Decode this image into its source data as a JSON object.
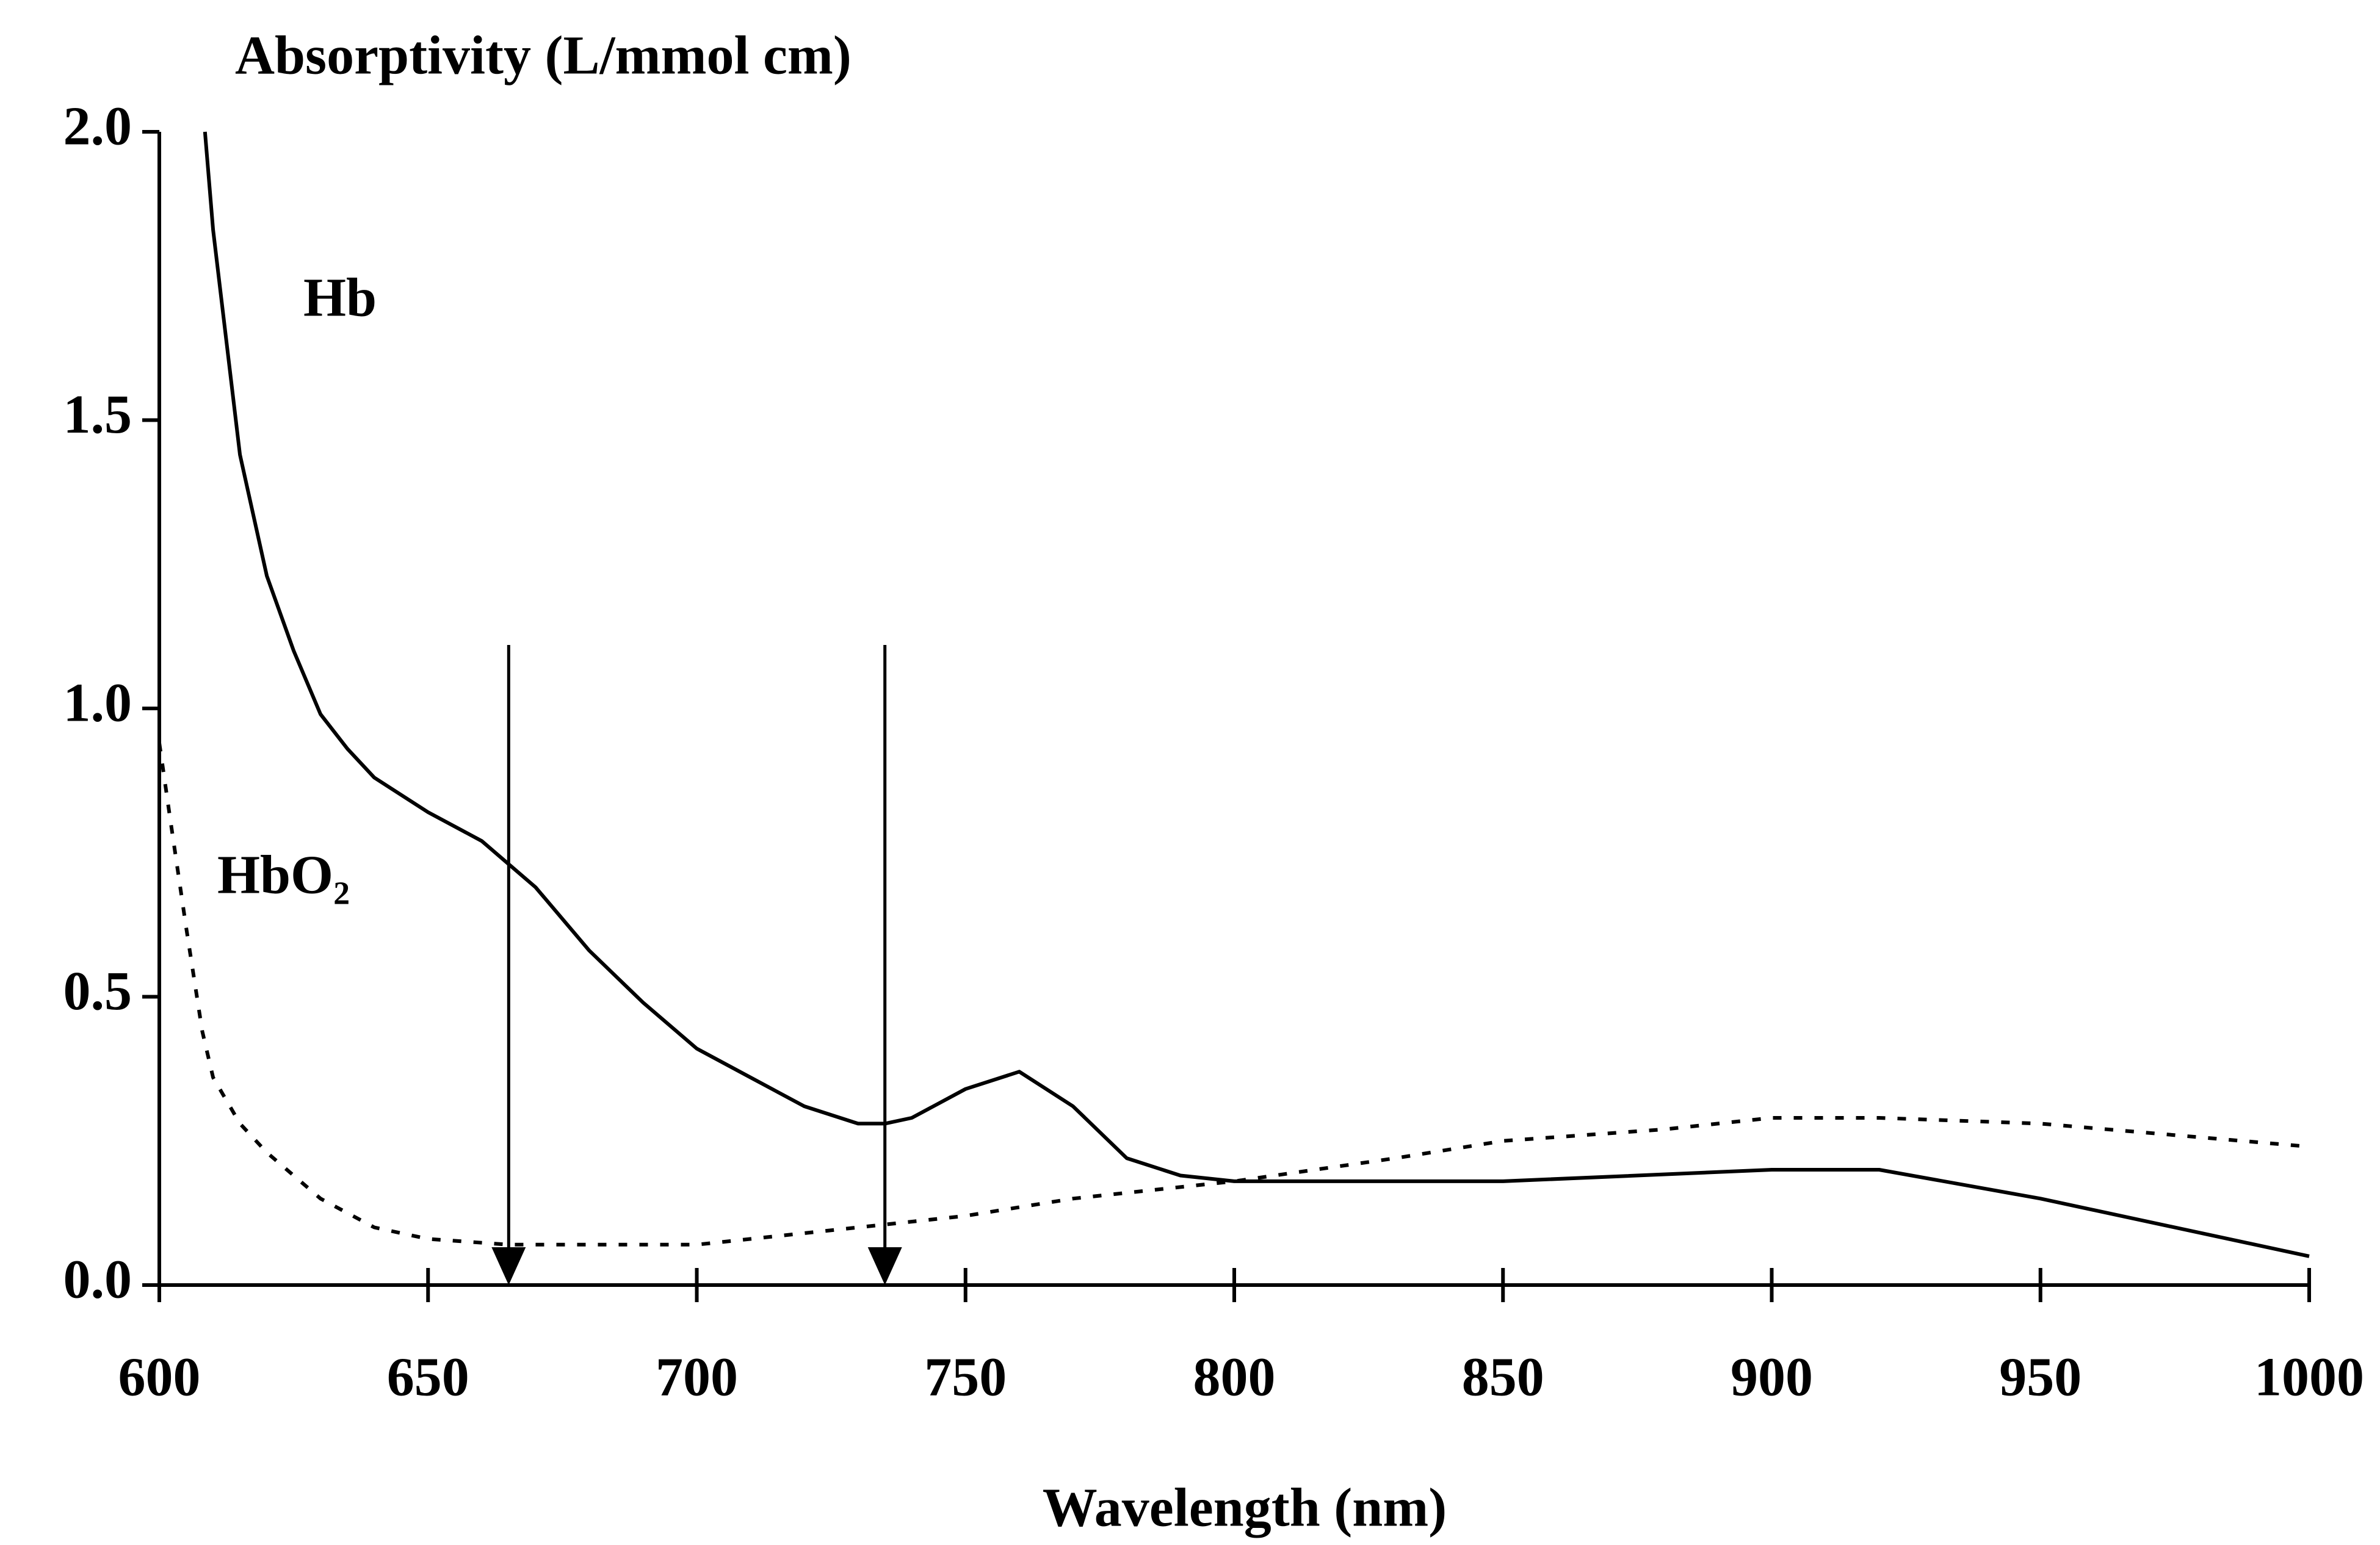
{
  "chart_data": {
    "type": "line",
    "title": "Absorptivity (L/mmol cm)",
    "x_label": "Wavelength (nm)",
    "series": [
      {
        "name": "Hb",
        "color": "#000000",
        "style": "solid",
        "x": [
          608.5,
          610,
          615,
          620,
          625,
          630,
          635,
          640,
          650,
          660,
          665,
          670,
          680,
          690,
          700,
          710,
          720,
          730,
          735,
          740,
          750,
          760,
          770,
          780,
          790,
          800,
          850,
          900,
          920,
          950,
          1000
        ],
        "values": [
          2.0,
          1.83,
          1.44,
          1.23,
          1.1,
          0.99,
          0.93,
          0.88,
          0.82,
          0.77,
          0.73,
          0.69,
          0.58,
          0.49,
          0.41,
          0.36,
          0.31,
          0.28,
          0.28,
          0.29,
          0.34,
          0.37,
          0.31,
          0.22,
          0.19,
          0.18,
          0.18,
          0.2,
          0.2,
          0.15,
          0.05
        ]
      },
      {
        "name": "HbO₂",
        "color": "#000000",
        "style": "dotted",
        "x": [
          600,
          602,
          605,
          608,
          610,
          615,
          620,
          630,
          640,
          650,
          665,
          700,
          730,
          750,
          770,
          800,
          830,
          850,
          880,
          900,
          920,
          950,
          1000
        ],
        "values": [
          0.94,
          0.81,
          0.62,
          0.44,
          0.36,
          0.28,
          0.23,
          0.15,
          0.1,
          0.08,
          0.07,
          0.07,
          0.1,
          0.12,
          0.15,
          0.18,
          0.22,
          0.25,
          0.27,
          0.29,
          0.29,
          0.28,
          0.24
        ]
      }
    ],
    "arrows": [
      {
        "x": 665,
        "from": 1.11,
        "to": 0
      },
      {
        "x": 735,
        "from": 1.11,
        "to": 0
      }
    ],
    "xlim": [
      600,
      1000
    ],
    "xticks": [
      600,
      650,
      700,
      750,
      800,
      850,
      900,
      950,
      1000
    ],
    "ylim": [
      0,
      2.0
    ],
    "yticks": [
      {
        "value": 0,
        "label": "0.0"
      },
      {
        "value": 0.5,
        "label": "0.5"
      },
      {
        "value": 1,
        "label": "1.0"
      },
      {
        "value": 1.5,
        "label": "1.5"
      },
      {
        "value": 2,
        "label": "2.0"
      }
    ],
    "grid": false
  }
}
